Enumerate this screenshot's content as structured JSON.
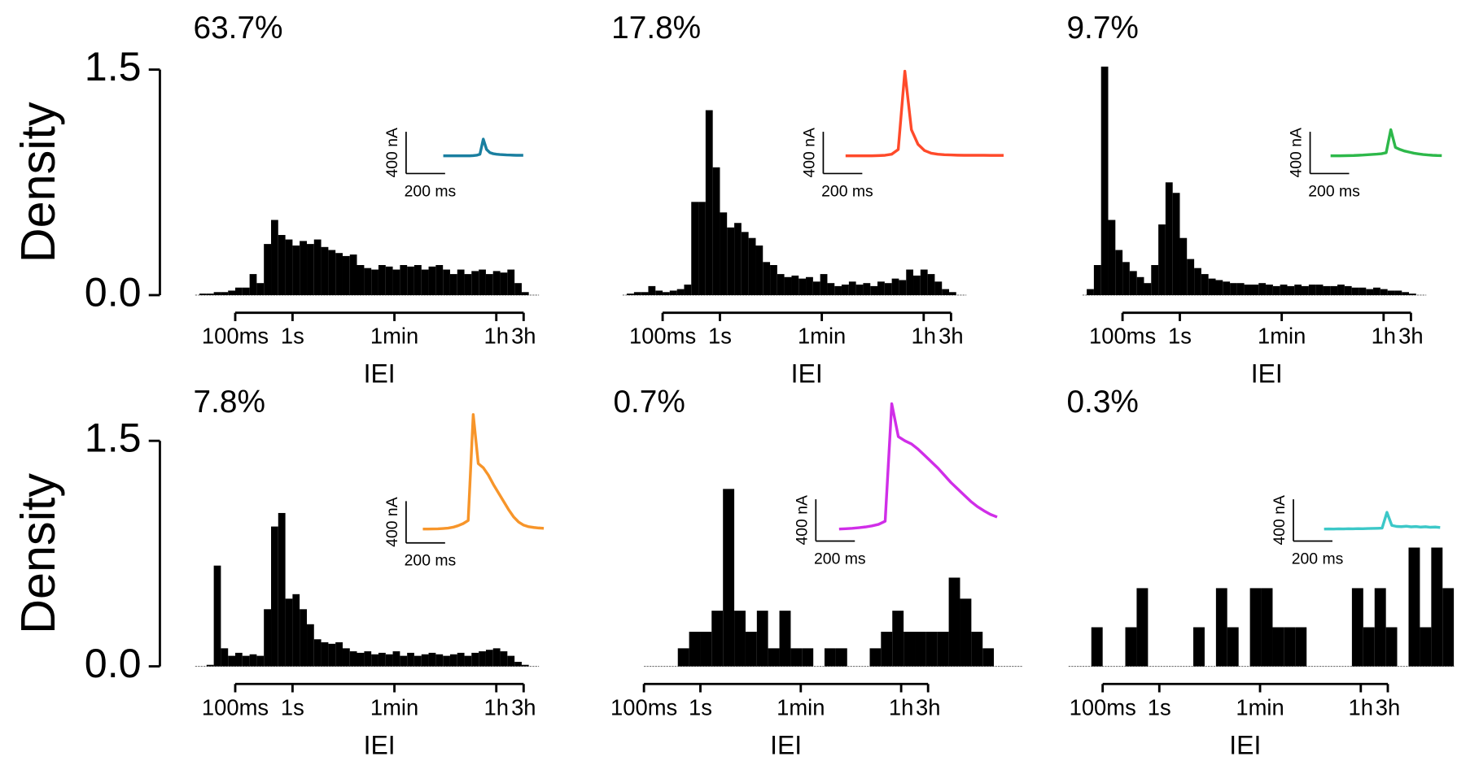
{
  "chart_data": [
    {
      "type": "histogram",
      "title": "63.7%",
      "xlabel": "IEI",
      "ylabel": "Density",
      "xscale": "log",
      "xlim": [
        0.02,
        20000
      ],
      "xticks": [
        {
          "value": 0.1,
          "label": "100ms"
        },
        {
          "value": 1,
          "label": "1s"
        },
        {
          "value": 60,
          "label": "1min"
        },
        {
          "value": 3600,
          "label": "1h"
        },
        {
          "value": 10800,
          "label": "3h"
        }
      ],
      "ylim": [
        0,
        1.5
      ],
      "yticks": [
        {
          "value": 0,
          "label": "0.0"
        },
        {
          "value": 1.5,
          "label": "1.5"
        }
      ],
      "color": "#000000",
      "bins": [
        0.0237,
        0.0316,
        0.0422,
        0.0562,
        0.075,
        0.1,
        0.133,
        0.178,
        0.237,
        0.316,
        0.422,
        0.562,
        0.75,
        1,
        1.33,
        1.78,
        2.37,
        3.16,
        4.22,
        5.62,
        7.5,
        10,
        13.3,
        17.8,
        23.7,
        31.6,
        42.2,
        56.2,
        75,
        100,
        133,
        178,
        237,
        316,
        422,
        562,
        750,
        1000,
        1330,
        1780,
        2370,
        3160,
        4220,
        5620,
        7500,
        10000,
        13300
      ],
      "values": [
        0.01,
        0.01,
        0.02,
        0.02,
        0.03,
        0.05,
        0.05,
        0.14,
        0.08,
        0.34,
        0.5,
        0.4,
        0.37,
        0.33,
        0.36,
        0.34,
        0.37,
        0.32,
        0.3,
        0.28,
        0.26,
        0.27,
        0.2,
        0.18,
        0.17,
        0.2,
        0.19,
        0.17,
        0.2,
        0.19,
        0.2,
        0.17,
        0.19,
        0.2,
        0.17,
        0.14,
        0.17,
        0.14,
        0.16,
        0.17,
        0.14,
        0.16,
        0.15,
        0.17,
        0.08,
        0.02
      ],
      "inset": {
        "ybar": {
          "value": 400,
          "label": "400 nA"
        },
        "xbar": {
          "value": 200,
          "label": "200 ms"
        },
        "color": "#1a7fa0",
        "duration_ms": 410,
        "trace": [
          170,
          170,
          170,
          170,
          170,
          170,
          170,
          170,
          170,
          172,
          175,
          185,
          330,
          230,
          200,
          190,
          185,
          182,
          180,
          178,
          177,
          176,
          175,
          175,
          175
        ]
      }
    },
    {
      "type": "histogram",
      "title": "17.8%",
      "xlabel": "IEI",
      "xscale": "log",
      "xlim": [
        0.02,
        20000
      ],
      "xticks": [
        {
          "value": 0.1,
          "label": "100ms"
        },
        {
          "value": 1,
          "label": "1s"
        },
        {
          "value": 60,
          "label": "1min"
        },
        {
          "value": 3600,
          "label": "1h"
        },
        {
          "value": 10800,
          "label": "3h"
        }
      ],
      "ylim": [
        0,
        1.5
      ],
      "color": "#000000",
      "bins": [
        0.0237,
        0.0316,
        0.0422,
        0.0562,
        0.075,
        0.1,
        0.133,
        0.178,
        0.237,
        0.316,
        0.422,
        0.562,
        0.75,
        1,
        1.33,
        1.78,
        2.37,
        3.16,
        4.22,
        5.62,
        7.5,
        10,
        13.3,
        17.8,
        23.7,
        31.6,
        42.2,
        56.2,
        75,
        100,
        133,
        178,
        237,
        316,
        422,
        562,
        750,
        1000,
        1330,
        1780,
        2370,
        3160,
        4220,
        5620,
        7500,
        10000,
        13300
      ],
      "values": [
        0.01,
        0.02,
        0.02,
        0.06,
        0.03,
        0.02,
        0.03,
        0.04,
        0.07,
        0.62,
        0.62,
        1.23,
        0.85,
        0.55,
        0.45,
        0.48,
        0.42,
        0.38,
        0.33,
        0.22,
        0.2,
        0.14,
        0.12,
        0.13,
        0.11,
        0.12,
        0.09,
        0.14,
        0.08,
        0.06,
        0.07,
        0.09,
        0.07,
        0.08,
        0.06,
        0.09,
        0.08,
        0.11,
        0.1,
        0.17,
        0.13,
        0.17,
        0.14,
        0.09,
        0.04,
        0.02
      ],
      "inset": {
        "ybar": {
          "value": 400,
          "label": "400 nA"
        },
        "xbar": {
          "value": 200,
          "label": "200 ms"
        },
        "color": "#ff4a2a",
        "duration_ms": 810,
        "trace": [
          170,
          170,
          170,
          170,
          170,
          172,
          175,
          185,
          230,
          980,
          420,
          280,
          220,
          195,
          185,
          180,
          178,
          176,
          175,
          175,
          175,
          175,
          174,
          174,
          174
        ]
      }
    },
    {
      "type": "histogram",
      "title": "9.7%",
      "xlabel": "IEI",
      "xscale": "log",
      "xlim": [
        0.02,
        20000
      ],
      "xticks": [
        {
          "value": 0.1,
          "label": "100ms"
        },
        {
          "value": 1,
          "label": "1s"
        },
        {
          "value": 60,
          "label": "1min"
        },
        {
          "value": 3600,
          "label": "1h"
        },
        {
          "value": 10800,
          "label": "3h"
        }
      ],
      "ylim": [
        0,
        1.5
      ],
      "color": "#000000",
      "bins": [
        0.0237,
        0.0316,
        0.0422,
        0.0562,
        0.075,
        0.1,
        0.133,
        0.178,
        0.237,
        0.316,
        0.422,
        0.562,
        0.75,
        1,
        1.33,
        1.78,
        2.37,
        3.16,
        4.22,
        5.62,
        7.5,
        10,
        13.3,
        17.8,
        23.7,
        31.6,
        42.2,
        56.2,
        75,
        100,
        133,
        178,
        237,
        316,
        422,
        562,
        750,
        1000,
        1330,
        1780,
        2370,
        3160,
        4220,
        5620,
        7500,
        10000,
        13300
      ],
      "values": [
        0.04,
        0.2,
        1.52,
        0.5,
        0.3,
        0.22,
        0.16,
        0.12,
        0.08,
        0.2,
        0.47,
        0.75,
        0.68,
        0.38,
        0.24,
        0.18,
        0.14,
        0.11,
        0.1,
        0.09,
        0.08,
        0.08,
        0.07,
        0.07,
        0.08,
        0.07,
        0.06,
        0.07,
        0.06,
        0.07,
        0.06,
        0.07,
        0.07,
        0.06,
        0.06,
        0.07,
        0.06,
        0.05,
        0.05,
        0.04,
        0.05,
        0.04,
        0.03,
        0.03,
        0.02,
        0.01
      ],
      "inset": {
        "ybar": {
          "value": 400,
          "label": "400 nA"
        },
        "xbar": {
          "value": 200,
          "label": "200 ms"
        },
        "color": "#2db84a",
        "duration_ms": 570,
        "trace": [
          170,
          170,
          170,
          171,
          172,
          173,
          175,
          177,
          180,
          183,
          186,
          190,
          200,
          420,
          250,
          230,
          215,
          205,
          195,
          188,
          182,
          178,
          175,
          173,
          172
        ]
      }
    },
    {
      "type": "histogram",
      "title": "7.8%",
      "xlabel": "IEI",
      "ylabel": "Density",
      "xscale": "log",
      "xlim": [
        0.02,
        20000
      ],
      "xticks": [
        {
          "value": 0.1,
          "label": "100ms"
        },
        {
          "value": 1,
          "label": "1s"
        },
        {
          "value": 60,
          "label": "1min"
        },
        {
          "value": 3600,
          "label": "1h"
        },
        {
          "value": 10800,
          "label": "3h"
        }
      ],
      "ylim": [
        0,
        1.5
      ],
      "yticks": [
        {
          "value": 0,
          "label": "0.0"
        },
        {
          "value": 1.5,
          "label": "1.5"
        }
      ],
      "color": "#000000",
      "bins": [
        0.0237,
        0.0316,
        0.0422,
        0.0562,
        0.075,
        0.1,
        0.133,
        0.178,
        0.237,
        0.316,
        0.422,
        0.562,
        0.75,
        1,
        1.33,
        1.78,
        2.37,
        3.16,
        4.22,
        5.62,
        7.5,
        10,
        13.3,
        17.8,
        23.7,
        31.6,
        42.2,
        56.2,
        75,
        100,
        133,
        178,
        237,
        316,
        422,
        562,
        750,
        1000,
        1330,
        1780,
        2370,
        3160,
        4220,
        5620,
        7500,
        10000,
        13300
      ],
      "values": [
        0,
        0.01,
        0.67,
        0.12,
        0.07,
        0.09,
        0.07,
        0.08,
        0.07,
        0.38,
        0.93,
        1.02,
        0.45,
        0.48,
        0.38,
        0.28,
        0.18,
        0.16,
        0.15,
        0.16,
        0.12,
        0.1,
        0.09,
        0.1,
        0.08,
        0.09,
        0.08,
        0.1,
        0.07,
        0.09,
        0.07,
        0.08,
        0.09,
        0.08,
        0.07,
        0.08,
        0.09,
        0.07,
        0.09,
        0.1,
        0.11,
        0.12,
        0.1,
        0.07,
        0.03,
        0.01
      ],
      "inset": {
        "ybar": {
          "value": 400,
          "label": "400 nA"
        },
        "xbar": {
          "value": 200,
          "label": "200 ms"
        },
        "color": "#f7952a",
        "duration_ms": 620,
        "trace": [
          133,
          133,
          134,
          135,
          138,
          142,
          150,
          165,
          185,
          215,
          1230,
          760,
          720,
          650,
          560,
          480,
          400,
          320,
          250,
          200,
          170,
          155,
          148,
          143,
          140
        ]
      }
    },
    {
      "type": "histogram",
      "title": "0.7%",
      "xlabel": "IEI",
      "xscale": "log",
      "xlim": [
        0.1,
        500000
      ],
      "xticks": [
        {
          "value": 0.1,
          "label": "100ms"
        },
        {
          "value": 1,
          "label": "1s"
        },
        {
          "value": 60,
          "label": "1min"
        },
        {
          "value": 3600,
          "label": "1h"
        },
        {
          "value": 10800,
          "label": "3h"
        }
      ],
      "ylim": [
        0,
        1.5
      ],
      "color": "#000000",
      "bins": [
        0.398,
        0.631,
        1,
        1.58,
        2.51,
        3.98,
        6.31,
        10,
        15.8,
        25.1,
        39.8,
        63.1,
        100,
        158,
        251,
        398,
        631,
        1000,
        1580,
        2510,
        3980,
        6310,
        10000,
        15800,
        25100,
        39800,
        63100,
        100000,
        158000
      ],
      "values": [
        0.12,
        0.23,
        0.23,
        0.37,
        1.18,
        0.37,
        0.23,
        0.37,
        0.12,
        0.37,
        0.12,
        0.12,
        0,
        0.12,
        0.12,
        0,
        0,
        0.12,
        0.23,
        0.37,
        0.23,
        0.23,
        0.23,
        0.23,
        0.59,
        0.45,
        0.23,
        0.12
      ],
      "inset": {
        "ybar": {
          "value": 400,
          "label": "400 nA"
        },
        "xbar": {
          "value": 200,
          "label": "200 ms"
        },
        "color": "#d02ee8",
        "duration_ms": 810,
        "trace": [
          115,
          118,
          122,
          128,
          135,
          145,
          160,
          190,
          1315,
          1000,
          960,
          930,
          880,
          820,
          760,
          700,
          630,
          560,
          500,
          440,
          380,
          330,
          290,
          255,
          230
        ]
      }
    },
    {
      "type": "histogram",
      "title": "0.3%",
      "xlabel": "IEI",
      "xscale": "log",
      "xlim": [
        0.025,
        160000
      ],
      "xticks": [
        {
          "value": 0.1,
          "label": "100ms"
        },
        {
          "value": 1,
          "label": "1s"
        },
        {
          "value": 60,
          "label": "1min"
        },
        {
          "value": 3600,
          "label": "1h"
        },
        {
          "value": 10800,
          "label": "3h"
        }
      ],
      "ylim": [
        0,
        1.5
      ],
      "color": "#000000",
      "bins": [
        0.0631,
        0.1,
        0.158,
        0.251,
        0.398,
        0.631,
        1,
        1.58,
        2.51,
        3.98,
        6.31,
        10,
        15.8,
        25.1,
        39.8,
        63.1,
        100,
        158,
        251,
        398,
        631,
        1000,
        1580,
        2510,
        3980,
        6310,
        10000,
        15800,
        25100,
        39800,
        63100,
        100000,
        158000
      ],
      "values": [
        0.26,
        0,
        0,
        0.26,
        0.52,
        0,
        0,
        0,
        0,
        0.26,
        0,
        0.52,
        0.26,
        0,
        0.52,
        0.52,
        0.26,
        0.26,
        0.26,
        0,
        0,
        0,
        0,
        0.52,
        0.26,
        0.52,
        0.26,
        0,
        0.79,
        0.26,
        0.79,
        0.52
      ],
      "inset": {
        "ybar": {
          "value": 400,
          "label": "400 nA"
        },
        "xbar": {
          "value": 200,
          "label": "200 ms"
        },
        "color": "#3cc8c8",
        "duration_ms": 595,
        "trace": [
          115,
          116,
          115,
          117,
          116,
          118,
          117,
          119,
          118,
          120,
          121,
          122,
          124,
          275,
          150,
          140,
          138,
          142,
          136,
          139,
          134,
          137,
          132,
          134,
          130
        ]
      }
    }
  ]
}
